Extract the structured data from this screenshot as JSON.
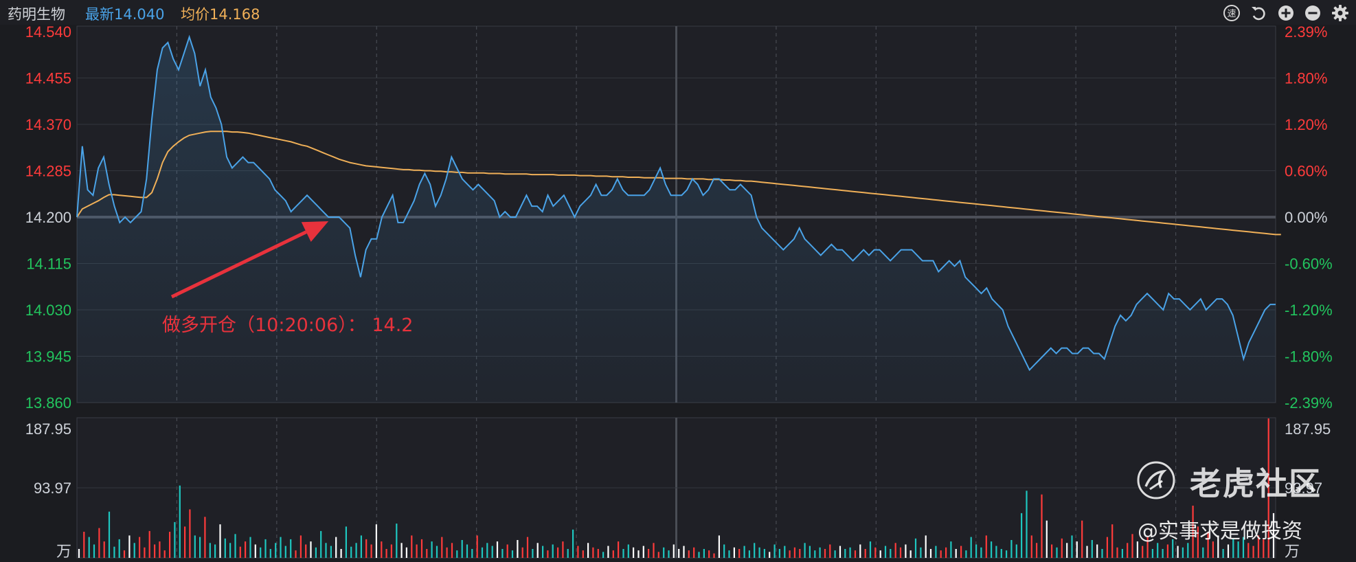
{
  "header": {
    "stock_name": "药明生物",
    "latest_label": "最新",
    "latest_value": "14.040",
    "avg_label": "均价",
    "avg_value": "14.168"
  },
  "toolbar": {
    "icons": [
      "speed-icon",
      "undo-icon",
      "zoom-in-icon",
      "zoom-out-icon",
      "gear-icon"
    ],
    "speed_glyph": "速"
  },
  "colors": {
    "up": "#ff3b3b",
    "down": "#22c55e",
    "price_line": "#4aa3e8",
    "avg_line": "#f0b058",
    "neutral": "#cfd3da",
    "annotation": "#e8323c"
  },
  "chart_data": [
    {
      "type": "line",
      "name": "intraday-price",
      "prev_close": 14.2,
      "ylim": [
        13.86,
        14.54
      ],
      "y_ticks": [
        "14.540",
        "14.455",
        "14.370",
        "14.285",
        "14.200",
        "14.115",
        "14.030",
        "13.945",
        "13.860"
      ],
      "pct_ticks": [
        "2.39%",
        "1.80%",
        "1.20%",
        "0.60%",
        "0.00%",
        "-0.60%",
        "-1.20%",
        "-1.80%",
        "-2.39%"
      ],
      "series": [
        {
          "key": "price",
          "values": [
            14.2,
            14.33,
            14.25,
            14.24,
            14.29,
            14.31,
            14.26,
            14.22,
            14.19,
            14.2,
            14.19,
            14.2,
            14.21,
            14.27,
            14.38,
            14.47,
            14.51,
            14.52,
            14.49,
            14.47,
            14.5,
            14.53,
            14.5,
            14.44,
            14.47,
            14.42,
            14.4,
            14.37,
            14.31,
            14.29,
            14.3,
            14.31,
            14.3,
            14.3,
            14.29,
            14.28,
            14.27,
            14.25,
            14.24,
            14.23,
            14.21,
            14.22,
            14.23,
            14.24,
            14.23,
            14.22,
            14.21,
            14.2,
            14.2,
            14.2,
            14.19,
            14.18,
            14.13,
            14.09,
            14.14,
            14.16,
            14.16,
            14.2,
            14.22,
            14.24,
            14.19,
            14.19,
            14.21,
            14.23,
            14.26,
            14.28,
            14.26,
            14.22,
            14.24,
            14.27,
            14.31,
            14.29,
            14.27,
            14.26,
            14.25,
            14.26,
            14.25,
            14.24,
            14.23,
            14.2,
            14.21,
            14.2,
            14.2,
            14.22,
            14.24,
            14.22,
            14.22,
            14.21,
            14.24,
            14.22,
            14.23,
            14.24,
            14.22,
            14.2,
            14.22,
            14.23,
            14.24,
            14.26,
            14.24,
            14.24,
            14.25,
            14.27,
            14.25,
            14.24,
            14.24,
            14.24,
            14.24,
            14.25,
            14.27,
            14.29,
            14.26,
            14.24,
            14.24,
            14.24,
            14.25,
            14.27,
            14.26,
            14.24,
            14.25,
            14.27,
            14.27,
            14.26,
            14.25,
            14.25,
            14.26,
            14.25,
            14.24,
            14.2,
            14.18,
            14.17,
            14.16,
            14.15,
            14.14,
            14.15,
            14.16,
            14.18,
            14.16,
            14.15,
            14.14,
            14.13,
            14.14,
            14.15,
            14.14,
            14.14,
            14.13,
            14.12,
            14.13,
            14.14,
            14.13,
            14.14,
            14.14,
            14.13,
            14.12,
            14.13,
            14.14,
            14.14,
            14.14,
            14.13,
            14.12,
            14.12,
            14.12,
            14.1,
            14.11,
            14.12,
            14.11,
            14.12,
            14.09,
            14.08,
            14.07,
            14.06,
            14.07,
            14.05,
            14.04,
            14.03,
            14.0,
            13.98,
            13.96,
            13.94,
            13.92,
            13.93,
            13.94,
            13.95,
            13.96,
            13.95,
            13.96,
            13.96,
            13.95,
            13.95,
            13.96,
            13.96,
            13.95,
            13.95,
            13.94,
            13.97,
            14.0,
            14.02,
            14.01,
            14.02,
            14.04,
            14.05,
            14.06,
            14.05,
            14.04,
            14.03,
            14.06,
            14.05,
            14.05,
            14.04,
            14.03,
            14.04,
            14.05,
            14.03,
            14.04,
            14.05,
            14.05,
            14.04,
            14.02,
            13.98,
            13.94,
            13.97,
            13.99,
            14.01,
            14.03,
            14.04,
            14.04
          ]
        },
        {
          "key": "avg",
          "values": [
            14.2,
            14.215,
            14.22,
            14.225,
            14.23,
            14.236,
            14.241,
            14.241,
            14.24,
            14.239,
            14.238,
            14.237,
            14.236,
            14.236,
            14.245,
            14.27,
            14.3,
            14.32,
            14.33,
            14.338,
            14.345,
            14.35,
            14.352,
            14.354,
            14.356,
            14.357,
            14.357,
            14.357,
            14.357,
            14.356,
            14.356,
            14.355,
            14.354,
            14.352,
            14.35,
            14.348,
            14.346,
            14.344,
            14.342,
            14.34,
            14.338,
            14.335,
            14.332,
            14.33,
            14.326,
            14.322,
            14.318,
            14.314,
            14.31,
            14.306,
            14.303,
            14.3,
            14.298,
            14.296,
            14.294,
            14.293,
            14.292,
            14.291,
            14.29,
            14.289,
            14.288,
            14.287,
            14.287,
            14.286,
            14.286,
            14.285,
            14.285,
            14.284,
            14.284,
            14.283,
            14.283,
            14.282,
            14.282,
            14.281,
            14.281,
            14.281,
            14.281,
            14.28,
            14.28,
            14.28,
            14.279,
            14.279,
            14.279,
            14.279,
            14.279,
            14.278,
            14.278,
            14.278,
            14.278,
            14.278,
            14.277,
            14.277,
            14.277,
            14.277,
            14.276,
            14.276,
            14.276,
            14.275,
            14.275,
            14.275,
            14.274,
            14.274,
            14.274,
            14.273,
            14.273,
            14.273,
            14.272,
            14.272,
            14.272,
            14.272,
            14.271,
            14.271,
            14.271,
            14.271,
            14.27,
            14.27,
            14.27,
            14.27,
            14.269,
            14.269,
            14.269,
            14.268,
            14.268,
            14.267,
            14.267,
            14.266,
            14.266,
            14.265,
            14.264,
            14.263,
            14.262,
            14.261,
            14.26,
            14.259,
            14.258,
            14.257,
            14.256,
            14.255,
            14.254,
            14.253,
            14.252,
            14.251,
            14.25,
            14.249,
            14.248,
            14.247,
            14.246,
            14.245,
            14.244,
            14.243,
            14.242,
            14.241,
            14.24,
            14.239,
            14.238,
            14.237,
            14.236,
            14.235,
            14.234,
            14.233,
            14.232,
            14.231,
            14.23,
            14.229,
            14.228,
            14.227,
            14.226,
            14.225,
            14.224,
            14.223,
            14.222,
            14.221,
            14.22,
            14.219,
            14.218,
            14.217,
            14.216,
            14.215,
            14.214,
            14.213,
            14.212,
            14.211,
            14.21,
            14.209,
            14.208,
            14.207,
            14.206,
            14.205,
            14.204,
            14.203,
            14.202,
            14.201,
            14.2,
            14.199,
            14.198,
            14.197,
            14.196,
            14.195,
            14.194,
            14.193,
            14.192,
            14.191,
            14.19,
            14.189,
            14.188,
            14.187,
            14.186,
            14.185,
            14.184,
            14.183,
            14.182,
            14.181,
            14.18,
            14.179,
            14.178,
            14.177,
            14.176,
            14.175,
            14.174,
            14.173,
            14.172,
            14.171,
            14.17,
            14.169,
            14.168,
            14.168
          ]
        }
      ],
      "annotation": {
        "text": "做多开仓（10:20:06）： 14.2",
        "index": 47,
        "price": 14.2
      }
    },
    {
      "type": "bar",
      "name": "volume",
      "ylim": [
        0,
        187.95
      ],
      "y_ticks": [
        "187.95",
        "93.97"
      ],
      "unit": "万",
      "values": [
        12,
        35,
        28,
        18,
        40,
        22,
        62,
        15,
        25,
        10,
        30,
        20,
        28,
        14,
        36,
        18,
        22,
        10,
        35,
        48,
        97,
        42,
        65,
        30,
        28,
        55,
        20,
        18,
        45,
        26,
        20,
        32,
        15,
        22,
        28,
        18,
        14,
        25,
        12,
        20,
        28,
        16,
        25,
        10,
        30,
        18,
        22,
        14,
        36,
        20,
        16,
        28,
        12,
        42,
        15,
        20,
        30,
        25,
        18,
        45,
        22,
        12,
        18,
        46,
        20,
        14,
        30,
        18,
        25,
        12,
        22,
        16,
        28,
        14,
        20,
        10,
        24,
        18,
        12,
        30,
        14,
        20,
        16,
        22,
        12,
        18,
        10,
        24,
        14,
        28,
        12,
        20,
        16,
        10,
        18,
        14,
        22,
        12,
        38,
        16,
        10,
        20,
        14,
        12,
        8,
        16,
        10,
        22,
        12,
        18,
        14,
        10,
        16,
        12,
        20,
        8,
        14,
        10,
        18,
        12,
        16,
        10,
        14,
        8,
        12,
        10,
        6,
        30,
        18,
        10,
        14,
        12,
        16,
        10,
        20,
        14,
        12,
        8,
        18,
        12,
        16,
        10,
        14,
        12,
        20,
        16,
        10,
        14,
        12,
        18,
        10,
        16,
        12,
        14,
        10,
        18,
        12,
        22,
        14,
        10,
        16,
        12,
        20,
        14,
        18,
        10,
        26,
        14,
        30,
        12,
        16,
        10,
        14,
        22,
        12,
        16,
        10,
        28,
        18,
        14,
        30,
        22,
        16,
        12,
        10,
        24,
        18,
        60,
        90,
        30,
        20,
        85,
        50,
        18,
        14,
        26,
        20,
        30,
        22,
        50,
        16,
        24,
        18,
        12,
        28,
        45,
        14,
        12,
        20,
        32,
        22,
        16,
        28,
        12,
        20,
        12,
        18,
        25,
        16,
        14,
        20,
        70,
        42,
        14,
        35,
        22,
        30,
        12,
        18,
        25,
        22,
        28,
        20,
        16,
        30,
        25,
        187,
        60
      ],
      "colors": [
        "#ff3b3b",
        "#1ec7c0",
        "#ffffff"
      ]
    }
  ],
  "watermark": {
    "brand": "老虎社区",
    "user": "@实事求是做投资"
  }
}
